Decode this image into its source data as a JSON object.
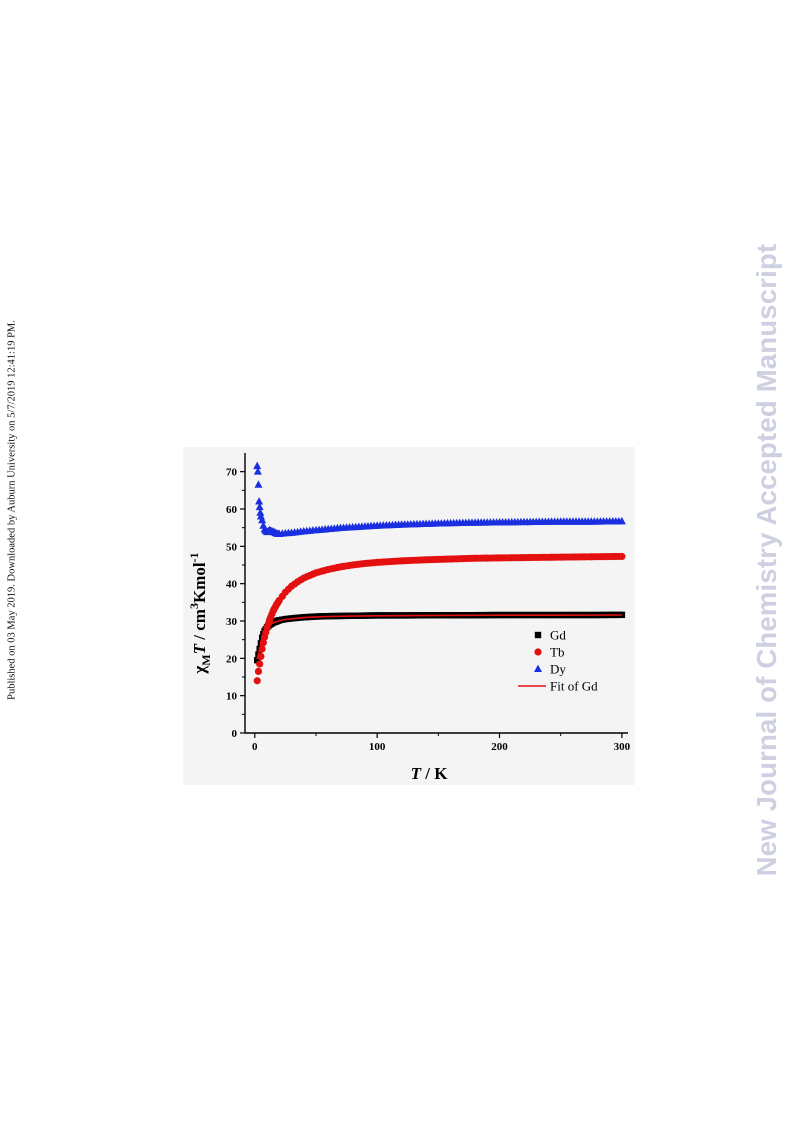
{
  "side_note": "Published on 03 May 2019. Downloaded by Auburn University on 5/7/2019 12:41:19 PM.",
  "journal_watermark": "New Journal of Chemistry Accepted Manuscript",
  "chart_data": {
    "type": "scatter",
    "title": "",
    "xlabel": {
      "italic": "T",
      "rest": " / K"
    },
    "ylabel": {
      "chi": "χ",
      "sub": "M",
      "T": "T",
      "unit": " / cm",
      "sup3": "3",
      "mid": "Kmol",
      "supm1": "-1"
    },
    "xlim": [
      -8,
      305
    ],
    "ylim": [
      0,
      75
    ],
    "xticks": [
      0,
      100,
      200,
      300
    ],
    "yticks": [
      0,
      10,
      20,
      30,
      40,
      50,
      60,
      70
    ],
    "grid": false,
    "legend_position": "lower-right",
    "legend": [
      {
        "label": "Gd",
        "marker": "square",
        "color": "#000000"
      },
      {
        "label": "Tb",
        "marker": "circle",
        "color": "#e41010"
      },
      {
        "label": "Dy",
        "marker": "triangle",
        "color": "#1a2fe0"
      },
      {
        "label": "Fit of Gd",
        "marker": "line",
        "color": "#e41010"
      }
    ],
    "series": [
      {
        "name": "Gd",
        "marker": "square",
        "color": "#000000",
        "x": [
          2,
          3,
          4,
          5,
          6,
          7,
          8,
          10,
          12,
          15,
          20,
          25,
          30,
          40,
          50,
          60,
          70,
          80,
          100,
          120,
          150,
          175,
          200,
          225,
          250,
          275,
          300
        ],
        "y": [
          19.5,
          21.0,
          22.5,
          24.0,
          25.5,
          26.5,
          27.3,
          28.3,
          29.0,
          29.6,
          30.2,
          30.5,
          30.7,
          31.0,
          31.2,
          31.3,
          31.35,
          31.4,
          31.5,
          31.5,
          31.55,
          31.55,
          31.6,
          31.6,
          31.6,
          31.6,
          31.65
        ]
      },
      {
        "name": "Tb",
        "marker": "circle",
        "color": "#e41010",
        "x": [
          2,
          3,
          4,
          5,
          6,
          7,
          8,
          10,
          12,
          15,
          18,
          20,
          25,
          30,
          35,
          40,
          50,
          60,
          70,
          80,
          90,
          100,
          120,
          140,
          160,
          180,
          200,
          225,
          250,
          275,
          300
        ],
        "y": [
          14.0,
          16.5,
          18.5,
          20.5,
          22.5,
          24.2,
          25.7,
          28.2,
          30.2,
          32.7,
          34.5,
          35.5,
          37.7,
          39.3,
          40.5,
          41.5,
          42.9,
          43.8,
          44.5,
          45.0,
          45.4,
          45.7,
          46.1,
          46.4,
          46.6,
          46.8,
          46.9,
          47.0,
          47.1,
          47.2,
          47.3
        ]
      },
      {
        "name": "Dy",
        "marker": "triangle",
        "color": "#1a2fe0",
        "x": [
          2,
          2.5,
          3,
          3.5,
          4,
          4.5,
          5,
          6,
          7,
          8,
          10,
          12,
          15,
          18,
          20,
          25,
          30,
          40,
          50,
          60,
          70,
          80,
          100,
          120,
          150,
          175,
          200,
          225,
          250,
          275,
          300
        ],
        "y": [
          71.5,
          70.0,
          66.5,
          62.0,
          60.5,
          59.0,
          58.0,
          57.0,
          55.5,
          54.5,
          53.8,
          54.3,
          53.9,
          53.4,
          53.3,
          53.5,
          53.6,
          54.0,
          54.3,
          54.6,
          54.9,
          55.1,
          55.5,
          55.8,
          56.1,
          56.3,
          56.4,
          56.5,
          56.6,
          56.6,
          56.7
        ]
      }
    ],
    "fit": {
      "name": "Fit of Gd",
      "color": "#e41010",
      "x": [
        2,
        4,
        6,
        8,
        10,
        12,
        15,
        20,
        25,
        30,
        40,
        50,
        60,
        80,
        100,
        150,
        200,
        250,
        300
      ],
      "y": [
        19.8,
        22.6,
        25.4,
        27.2,
        28.2,
        28.9,
        29.5,
        30.1,
        30.4,
        30.6,
        30.9,
        31.1,
        31.2,
        31.3,
        31.4,
        31.5,
        31.55,
        31.55,
        31.6
      ]
    }
  }
}
